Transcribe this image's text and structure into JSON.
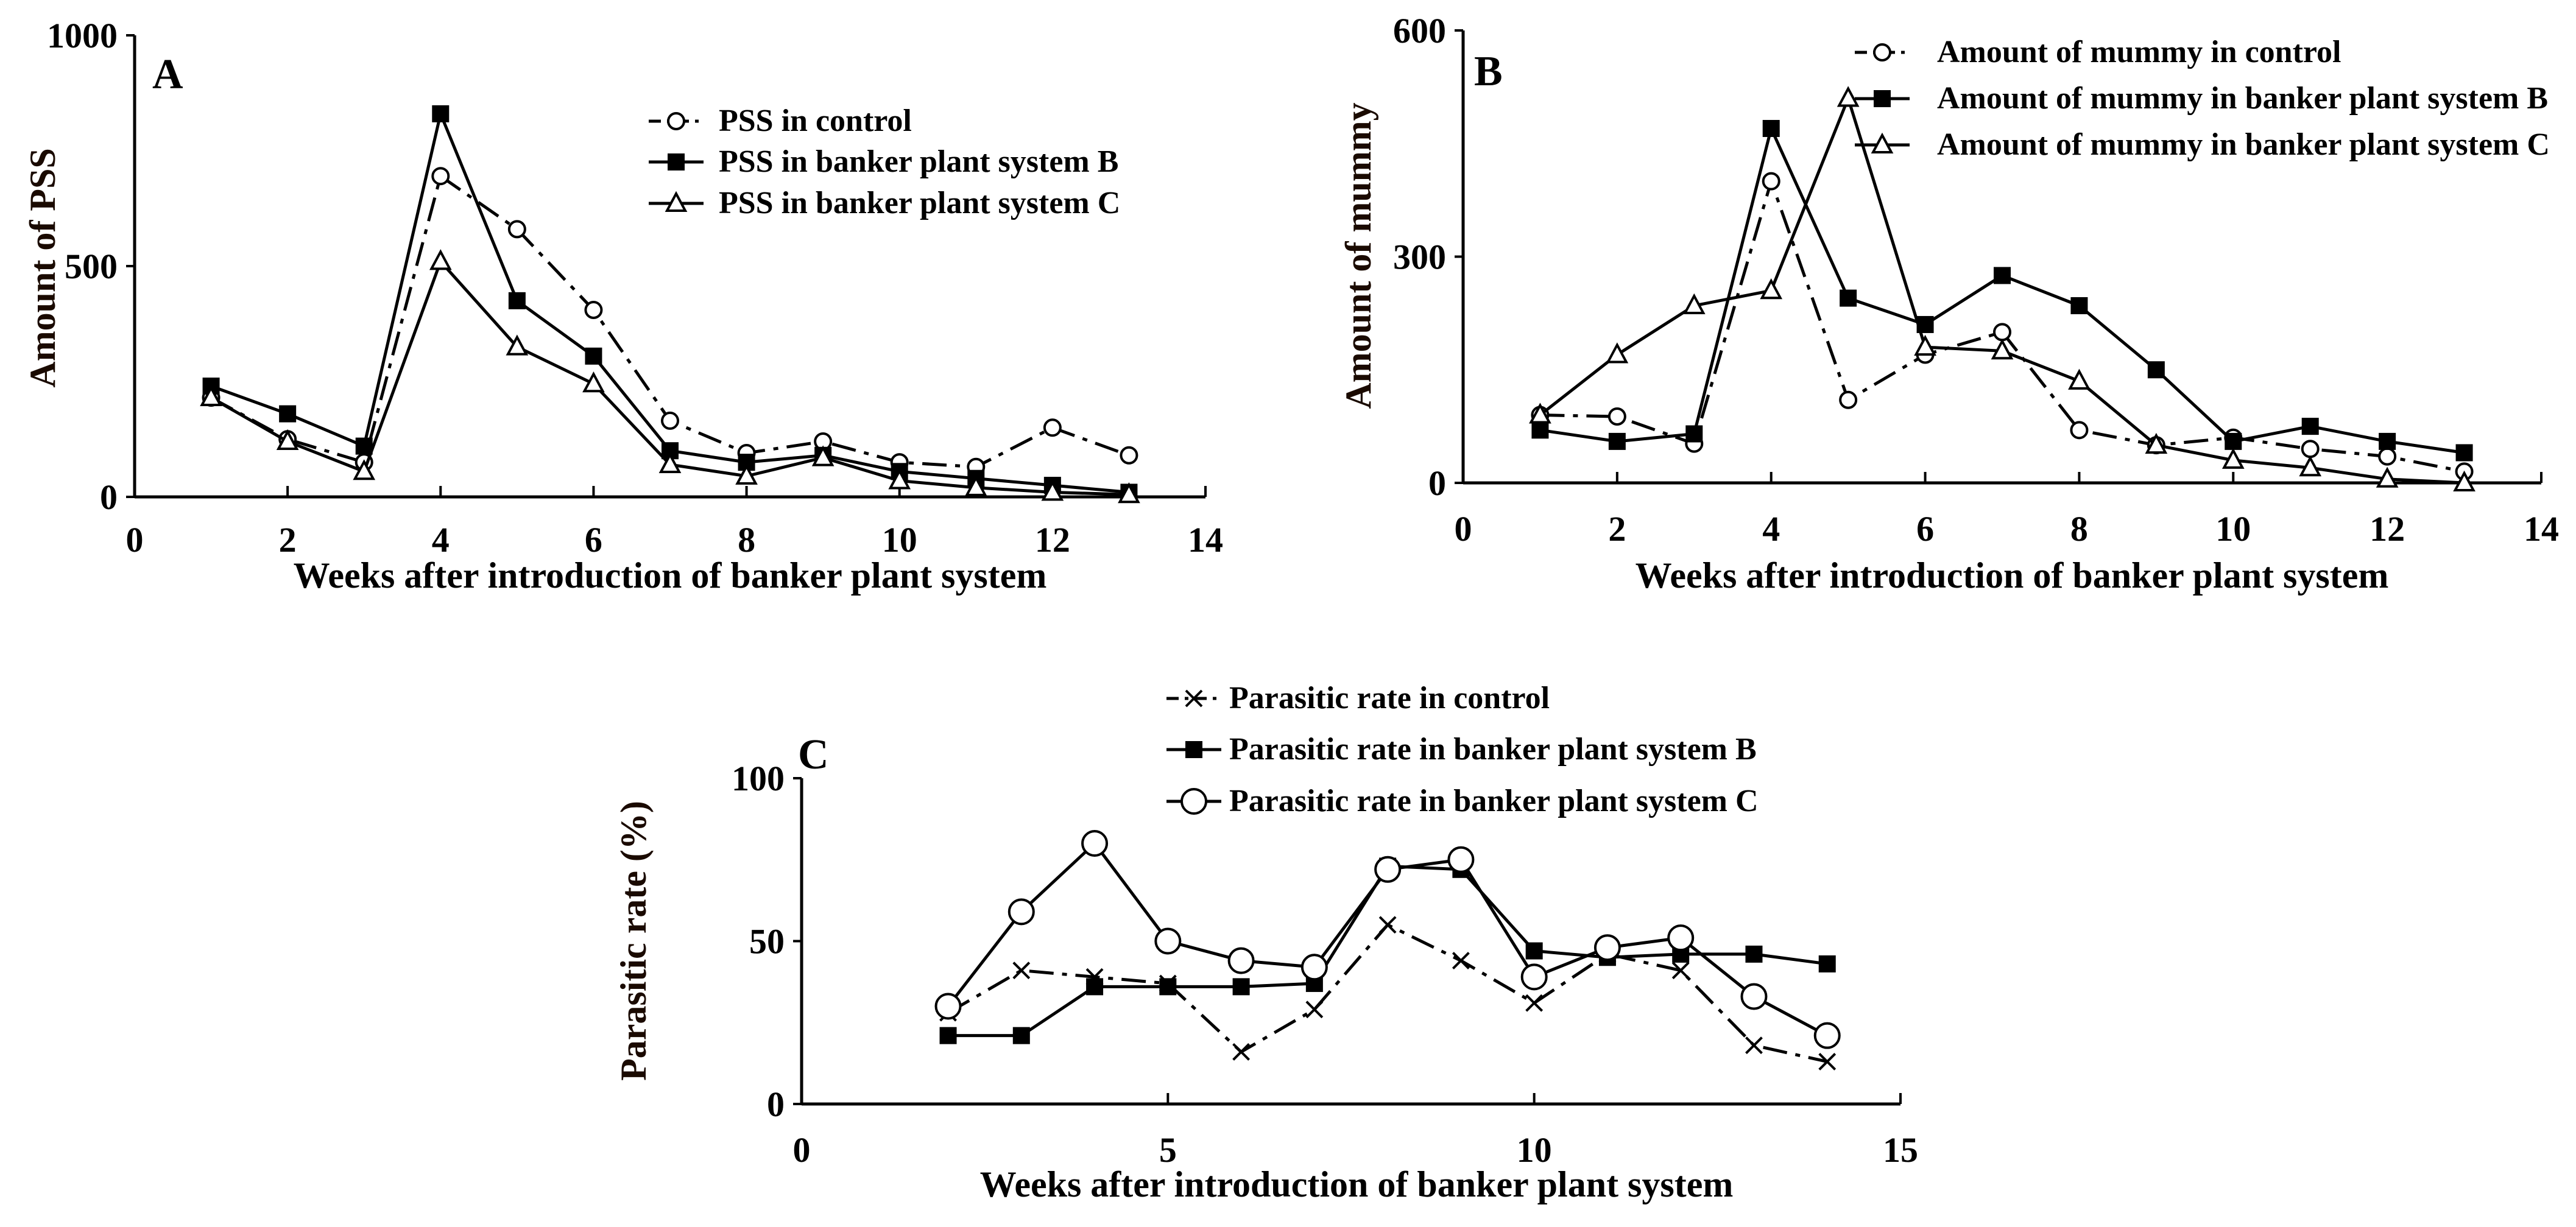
{
  "chart_data": [
    {
      "type": "line",
      "panel_label": "A",
      "xlabel": "Weeks after introduction of banker plant system",
      "ylabel": "Amount of PSS",
      "xlim": [
        0,
        14
      ],
      "ylim": [
        0,
        1000
      ],
      "xticks": [
        0,
        2,
        4,
        6,
        8,
        10,
        12,
        14
      ],
      "yticks": [
        0,
        500,
        1000
      ],
      "legend_position": "top-right",
      "x": [
        1,
        2,
        3,
        4,
        5,
        6,
        7,
        8,
        9,
        10,
        11,
        12,
        13
      ],
      "series": [
        {
          "name": "PSS in control",
          "marker": "open-circle",
          "line": "dash-dot",
          "values": [
            215,
            125,
            75,
            695,
            580,
            405,
            165,
            95,
            120,
            75,
            65,
            150,
            90
          ]
        },
        {
          "name": "PSS in banker plant system B",
          "marker": "filled-square",
          "line": "solid",
          "values": [
            240,
            180,
            110,
            830,
            425,
            305,
            100,
            75,
            90,
            55,
            40,
            25,
            10
          ]
        },
        {
          "name": "PSS in banker plant system C",
          "marker": "open-triangle",
          "line": "solid",
          "values": [
            215,
            120,
            55,
            510,
            325,
            245,
            70,
            45,
            85,
            35,
            20,
            10,
            5
          ]
        }
      ]
    },
    {
      "type": "line",
      "panel_label": "B",
      "xlabel": "Weeks after introduction of banker plant system",
      "ylabel": "Amount of mummy",
      "xlim": [
        0,
        14
      ],
      "ylim": [
        0,
        600
      ],
      "xticks": [
        0,
        2,
        4,
        6,
        8,
        10,
        12,
        14
      ],
      "yticks": [
        0,
        300,
        600
      ],
      "legend_position": "top-right",
      "x": [
        1,
        2,
        3,
        4,
        5,
        6,
        7,
        8,
        9,
        10,
        11,
        12,
        13
      ],
      "series": [
        {
          "name": "Amount of mummy in control",
          "marker": "open-circle",
          "line": "dash-dot",
          "values": [
            90,
            88,
            52,
            400,
            110,
            170,
            200,
            70,
            50,
            60,
            45,
            35,
            15
          ]
        },
        {
          "name": "Amount of mummy in banker plant system B",
          "marker": "filled-square",
          "line": "solid",
          "values": [
            70,
            55,
            65,
            470,
            245,
            210,
            275,
            235,
            150,
            55,
            75,
            55,
            40
          ]
        },
        {
          "name": "Amount of mummy in banker plant system C",
          "marker": "open-triangle",
          "line": "solid",
          "values": [
            90,
            170,
            235,
            255,
            510,
            180,
            175,
            135,
            50,
            30,
            20,
            5,
            0
          ]
        }
      ]
    },
    {
      "type": "line",
      "panel_label": "C",
      "xlabel": "Weeks after introduction of banker plant system",
      "ylabel": "Parasitic rate (%)",
      "xlim": [
        0,
        15
      ],
      "ylim": [
        0,
        100
      ],
      "xticks": [
        0,
        5,
        10,
        15
      ],
      "yticks": [
        0,
        50,
        100
      ],
      "legend_position": "top-center",
      "x": [
        2,
        3,
        4,
        5,
        6,
        7,
        8,
        9,
        10,
        11,
        12,
        13,
        14
      ],
      "series": [
        {
          "name": "Parasitic rate in control",
          "marker": "x",
          "line": "dash-dot",
          "values": [
            28,
            41,
            39,
            37,
            16,
            29,
            55,
            44,
            31,
            46,
            41,
            18,
            13
          ]
        },
        {
          "name": "Parasitic rate in banker plant system B",
          "marker": "filled-square",
          "line": "solid",
          "values": [
            21,
            21,
            36,
            36,
            36,
            37,
            73,
            72,
            47,
            45,
            46,
            46,
            43
          ]
        },
        {
          "name": "Parasitic rate in banker plant system C",
          "marker": "big-open-circle",
          "line": "solid",
          "values": [
            30,
            59,
            80,
            50,
            44,
            42,
            72,
            75,
            39,
            48,
            51,
            33,
            21
          ]
        }
      ]
    }
  ]
}
